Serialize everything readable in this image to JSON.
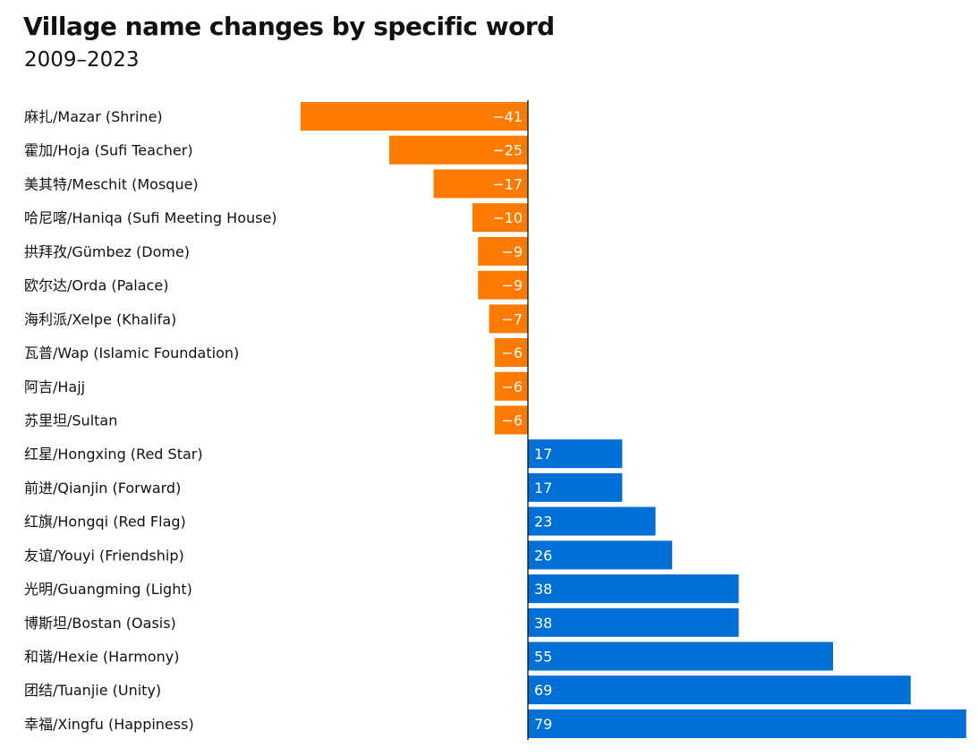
{
  "title": "Village name changes by specific word",
  "subtitle": "2009–2023",
  "colors": {
    "negative": "#ff7a00",
    "positive": "#006fd6",
    "axis": "#111111",
    "text": "#111111",
    "value_text": "#ffffff"
  },
  "chart_data": {
    "type": "bar",
    "orientation": "horizontal",
    "title": "Village name changes by specific word",
    "subtitle": "2009–2023",
    "xlabel": "",
    "ylabel": "",
    "grid": false,
    "legend": "none",
    "xlim": [
      -41,
      79
    ],
    "categories": [
      "麻扎/Mazar (Shrine)",
      "霍加/Hoja (Sufi Teacher)",
      "美其特/Meschit (Mosque)",
      "哈尼喀/Haniqa (Sufi Meeting House)",
      "拱拜孜/Gümbez (Dome)",
      "欧尔达/Orda (Palace)",
      "海利派/Xelpe (Khalifa)",
      "瓦普/Wap (Islamic Foundation)",
      "阿吉/Hajj",
      "苏里坦/Sultan",
      "红星/Hongxing (Red Star)",
      "前进/Qianjin (Forward)",
      "红旗/Hongqi (Red Flag)",
      "友谊/Youyi (Friendship)",
      "光明/Guangming (Light)",
      "博斯坦/Bostan (Oasis)",
      "和谐/Hexie (Harmony)",
      "团结/Tuanjie (Unity)",
      "幸福/Xingfu (Happiness)"
    ],
    "values": [
      -41,
      -25,
      -17,
      -10,
      -9,
      -9,
      -7,
      -6,
      -6,
      -6,
      17,
      17,
      23,
      26,
      38,
      38,
      55,
      69,
      79
    ],
    "value_labels": [
      "−41",
      "−25",
      "−17",
      "−10",
      "−9",
      "−9",
      "−7",
      "−6",
      "−6",
      "−6",
      "17",
      "17",
      "23",
      "26",
      "38",
      "38",
      "55",
      "69",
      "79"
    ]
  }
}
